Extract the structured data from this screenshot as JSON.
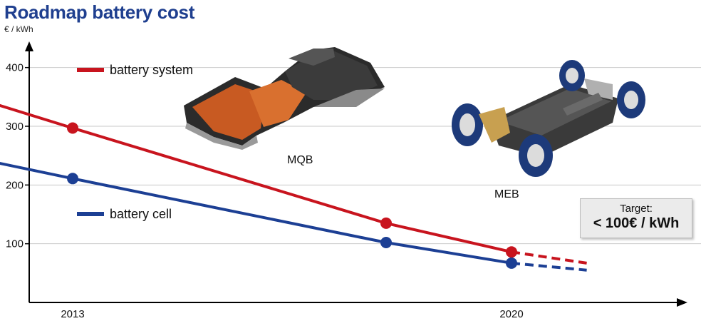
{
  "title": "Roadmap battery cost",
  "unit_label": "€ / kWh",
  "colors": {
    "system": "#c8141e",
    "cell": "#1c3f94",
    "title": "#1f3f8f"
  },
  "chart_data": {
    "type": "line",
    "title": "Roadmap battery cost",
    "ylabel": "€ / kWh",
    "xlabel": "",
    "x_ticks": [
      "2013",
      "2020"
    ],
    "y_ticks": [
      "100",
      "200",
      "300",
      "400"
    ],
    "ylim": [
      0,
      410
    ],
    "grid": "horizontal",
    "series": [
      {
        "name": "battery system",
        "color": "#c8141e",
        "points": [
          [
            2011.7,
            340
          ],
          [
            2013,
            297
          ],
          [
            2018,
            135
          ],
          [
            2020,
            86
          ]
        ],
        "markers": [
          [
            2013,
            297
          ],
          [
            2018,
            135
          ],
          [
            2020,
            86
          ]
        ],
        "projection": [
          [
            2020,
            86
          ],
          [
            2021.2,
            67
          ]
        ]
      },
      {
        "name": "battery cell",
        "color": "#1c3f94",
        "points": [
          [
            2011.7,
            240
          ],
          [
            2013,
            211
          ],
          [
            2018,
            102
          ],
          [
            2020,
            67
          ]
        ],
        "markers": [
          [
            2013,
            211
          ],
          [
            2018,
            102
          ],
          [
            2020,
            67
          ]
        ],
        "projection": [
          [
            2020,
            67
          ],
          [
            2021.2,
            55
          ]
        ]
      }
    ],
    "annotations": {
      "platform_1": "MQB",
      "platform_2": "MEB"
    },
    "target": {
      "label": "Target:",
      "value": "< 100€ / kWh"
    }
  }
}
